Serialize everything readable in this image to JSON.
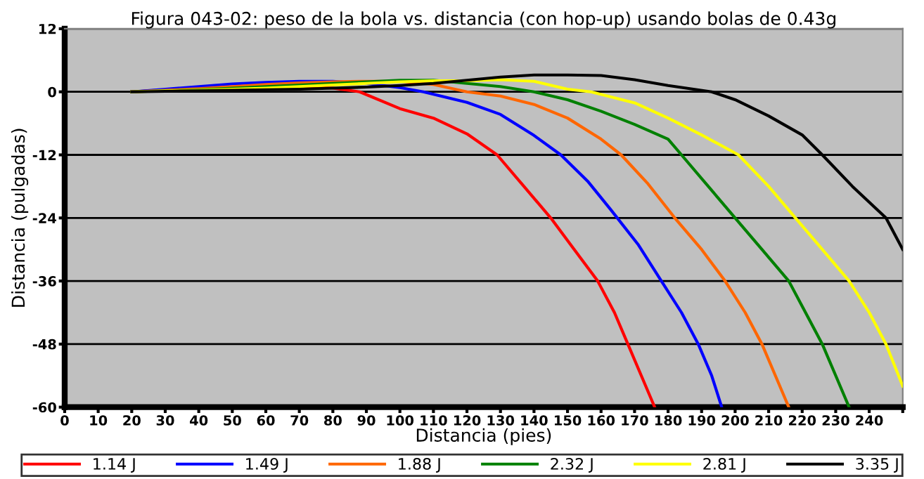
{
  "chart_data": {
    "type": "line",
    "title": "Figura 043-02: peso de la bola vs. distancia (con hop-up) usando bolas de 0.43g",
    "xlabel": "Distancia (pies)",
    "ylabel": "Distancia (pulgadas)",
    "xlim": [
      0,
      250
    ],
    "xticks": [
      0,
      10,
      20,
      30,
      40,
      50,
      60,
      70,
      80,
      90,
      100,
      110,
      120,
      130,
      140,
      150,
      160,
      170,
      180,
      190,
      200,
      210,
      220,
      230,
      240,
      {
        "value": 250,
        "label": null
      }
    ],
    "ylim": [
      -60,
      12
    ],
    "yticks": [
      -60,
      -48,
      -36,
      -24,
      -12,
      0,
      12
    ],
    "grid": "y",
    "legend": "bottom",
    "marker": "none",
    "line_style": "solid",
    "series": [
      {
        "name": "1.14 J",
        "color": "#ff0000",
        "x": [
          20,
          30,
          40,
          50,
          60,
          70,
          80,
          88,
          100,
          110,
          120,
          129,
          137,
          145,
          152,
          159,
          164,
          168,
          172,
          176
        ],
        "values": [
          0,
          0.4,
          0.7,
          0.9,
          1,
          1,
          0.7,
          0,
          -3.2,
          -5,
          -8,
          -12,
          -18,
          -24,
          -30,
          -36,
          -42,
          -48,
          -54,
          -60
        ]
      },
      {
        "name": "1.49 J",
        "color": "#0000ff",
        "x": [
          20,
          30,
          40,
          50,
          60,
          70,
          80,
          90,
          100,
          107,
          120,
          130,
          140,
          148,
          156,
          163,
          171,
          178,
          184,
          189,
          193,
          196
        ],
        "values": [
          0,
          0.5,
          1,
          1.5,
          1.8,
          2,
          2,
          1.6,
          0.8,
          0,
          -2,
          -4.3,
          -8.3,
          -12,
          -17,
          -22.5,
          -29,
          -36,
          -42,
          -48,
          -54,
          -60
        ]
      },
      {
        "name": "1.88 J",
        "color": "#ff6600",
        "x": [
          20,
          30,
          40,
          50,
          60,
          70,
          80,
          90,
          100,
          110,
          120,
          130,
          140,
          150,
          160,
          166,
          174,
          182,
          190,
          197,
          203,
          208,
          212,
          216
        ],
        "values": [
          0,
          0.3,
          0.6,
          1,
          1.4,
          1.7,
          1.9,
          2,
          2,
          1.4,
          0,
          -0.8,
          -2.4,
          -5,
          -9,
          -12,
          -17.5,
          -24,
          -30,
          -36,
          -42,
          -48,
          -54,
          -60
        ]
      },
      {
        "name": "2.32 J",
        "color": "#008000",
        "x": [
          20,
          30,
          40,
          50,
          60,
          70,
          80,
          90,
          100,
          110,
          120,
          130,
          140,
          150,
          160,
          170,
          180,
          184,
          192,
          200,
          208,
          216,
          221,
          226,
          230,
          234
        ],
        "values": [
          0,
          0.2,
          0.4,
          0.7,
          1,
          1.3,
          1.6,
          1.9,
          2.2,
          2.2,
          1.6,
          1,
          0,
          -1.5,
          -3.7,
          -6.2,
          -9,
          -12,
          -18,
          -24,
          -30,
          -36,
          -42,
          -48,
          -54,
          -60
        ]
      },
      {
        "name": "2.81 J",
        "color": "#ffff00",
        "x": [
          20,
          30,
          40,
          50,
          60,
          70,
          80,
          90,
          100,
          110,
          120,
          130,
          140,
          150,
          157,
          170,
          180,
          190,
          201,
          210,
          218,
          226,
          234,
          240,
          245,
          250
        ],
        "values": [
          0,
          0.2,
          0.3,
          0.5,
          0.7,
          1,
          1.3,
          1.6,
          1.9,
          2.1,
          2.1,
          2.3,
          2,
          0.5,
          0,
          -2.1,
          -5,
          -8.2,
          -12,
          -18,
          -24,
          -30,
          -36,
          -42,
          -48,
          -56
        ]
      },
      {
        "name": "3.35 J",
        "color": "#000000",
        "x": [
          20,
          30,
          40,
          50,
          60,
          70,
          80,
          90,
          100,
          110,
          120,
          130,
          140,
          150,
          160,
          170,
          180,
          193,
          200,
          210,
          220,
          226,
          235,
          245,
          250
        ],
        "values": [
          0,
          0.1,
          0.2,
          0.3,
          0.4,
          0.5,
          0.7,
          0.9,
          1.2,
          1.6,
          2.2,
          2.8,
          3.2,
          3.2,
          3.1,
          2.3,
          1.2,
          0,
          -1.5,
          -4.6,
          -8.2,
          -12,
          -18,
          -24,
          -30
        ]
      }
    ]
  }
}
